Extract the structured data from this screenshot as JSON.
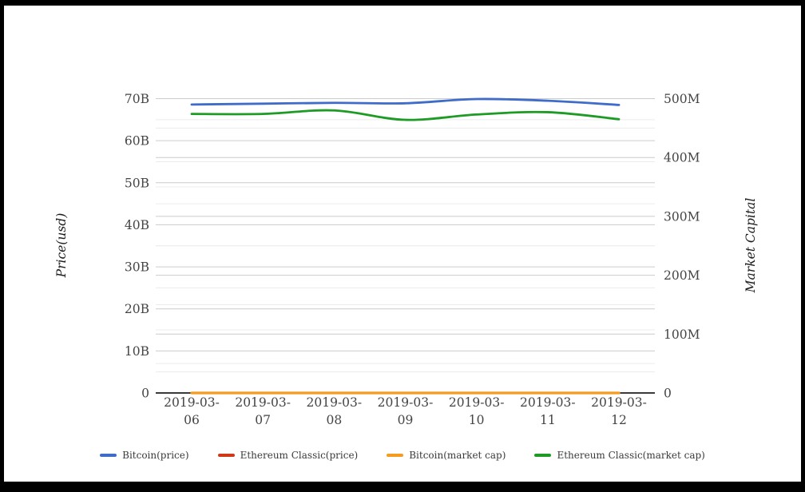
{
  "frame": {
    "border_color": "#000000",
    "background": "#ffffff"
  },
  "chart_data": {
    "type": "line",
    "title": "",
    "x_labels": [
      "2019-03-06",
      "2019-03-07",
      "2019-03-08",
      "2019-03-09",
      "2019-03-10",
      "2019-03-11",
      "2019-03-12"
    ],
    "left_axis": {
      "title": "Price(usd)",
      "unit": "B",
      "min": 0,
      "max": 70,
      "major_step": 10,
      "minor_step": 5,
      "tick_labels": [
        "0",
        "10B",
        "20B",
        "30B",
        "40B",
        "50B",
        "60B",
        "70B"
      ]
    },
    "right_axis": {
      "title": "Market Capital",
      "unit": "M",
      "min": 0,
      "max": 500,
      "major_step": 100,
      "minor_step": 50,
      "tick_labels": [
        "0",
        "100M",
        "200M",
        "300M",
        "400M",
        "500M"
      ]
    },
    "series": [
      {
        "name": "Bitcoin(price)",
        "color": "#3f6cc8",
        "axis": "left",
        "values": [
          68.6,
          68.8,
          69.0,
          68.9,
          69.9,
          69.5,
          68.5
        ]
      },
      {
        "name": "Ethereum Classic(price)",
        "color": "#cf3917",
        "axis": "left",
        "values": [
          0,
          0,
          0,
          0,
          0,
          0,
          0
        ]
      },
      {
        "name": "Bitcoin(market cap)",
        "color": "#f59b22",
        "axis": "right",
        "values": [
          0,
          0,
          0,
          0,
          0,
          0,
          0
        ]
      },
      {
        "name": "Ethereum Classic(market cap)",
        "color": "#1d9b24",
        "axis": "right",
        "values": [
          474,
          474,
          480,
          464,
          473,
          477,
          465
        ]
      }
    ],
    "grid": true,
    "legend_position": "bottom",
    "style": {
      "major_grid_color": "#cccccc",
      "minor_grid_color": "#ececec",
      "zero_line_color": "#3b3b3b",
      "tick_text_color": "#444444",
      "axis_title_color": "#1a1a1a",
      "legend_text_color": "#3a3a3a"
    }
  }
}
